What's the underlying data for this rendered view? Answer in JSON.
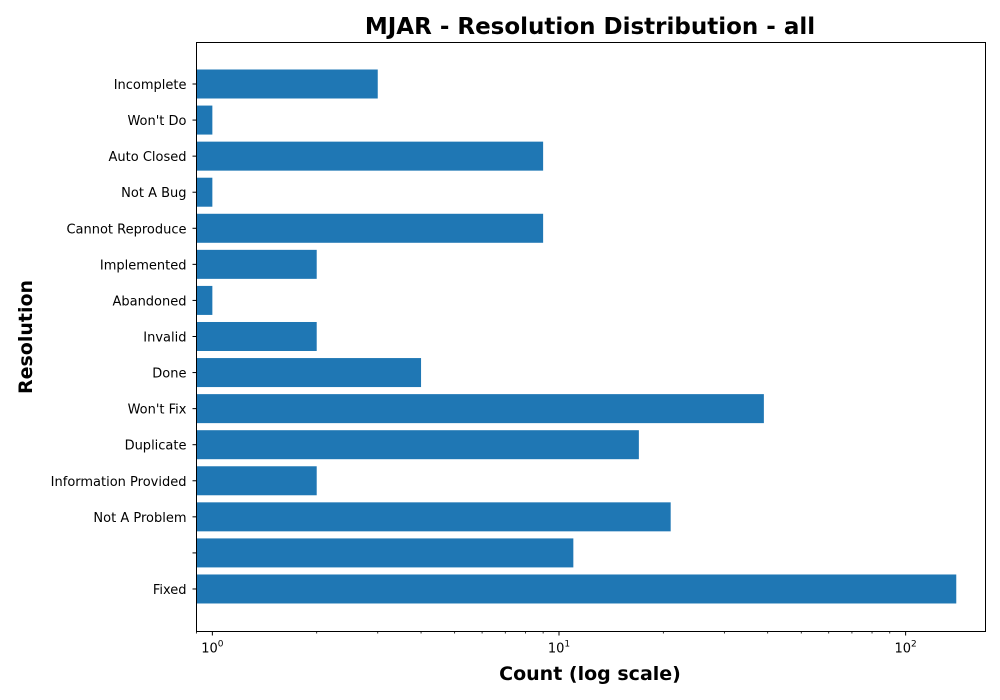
{
  "chart_data": {
    "type": "bar",
    "orientation": "horizontal",
    "title": "MJAR - Resolution Distribution - all",
    "xlabel": "Count (log scale)",
    "ylabel": "Resolution",
    "xscale": "log",
    "xlim": [
      0.9,
      170
    ],
    "grid": false,
    "categories": [
      "Incomplete",
      "Won't Do",
      "Auto Closed",
      "Not A Bug",
      "Cannot Reproduce",
      "Implemented",
      "Abandoned",
      "Invalid",
      "Done",
      "Won't Fix",
      "Duplicate",
      "Information Provided",
      "Not A Problem",
      "",
      "Fixed"
    ],
    "values": [
      3,
      1,
      9,
      1,
      9,
      2,
      1,
      2,
      4,
      39,
      17,
      2,
      21,
      11,
      140
    ],
    "x_ticks": [
      {
        "base": "10",
        "exp": "0",
        "value": 1
      },
      {
        "base": "10",
        "exp": "1",
        "value": 10
      },
      {
        "base": "10",
        "exp": "2",
        "value": 100
      }
    ],
    "colors": {
      "bar": "#1f77b4",
      "axis": "#000000",
      "background": "#ffffff"
    }
  }
}
